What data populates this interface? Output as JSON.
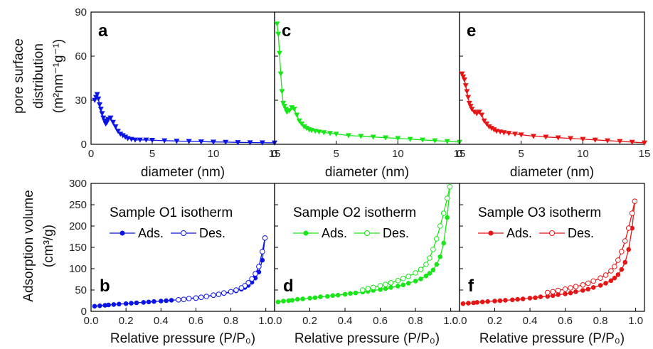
{
  "top_ylabel": [
    "pore surface",
    "distribution",
    "(m²nm⁻¹g⁻¹)"
  ],
  "bottom_ylabel": [
    "Adsorption volume",
    "(cm³/g)"
  ],
  "chart_data": [
    {
      "id": "a",
      "type": "line",
      "letter": "a",
      "color": "#0a14e6",
      "xlabel": "diameter (nm)",
      "xlim": [
        0,
        15
      ],
      "ylim": [
        0,
        90
      ],
      "xticks": [
        0,
        5,
        10,
        15
      ],
      "yticks": [
        0,
        30,
        60,
        90
      ],
      "series": [
        {
          "x": [
            0.3,
            0.4,
            0.5,
            0.6,
            0.7,
            0.8,
            0.9,
            1.0,
            1.1,
            1.2,
            1.3,
            1.4,
            1.6,
            1.8,
            2.0,
            2.2,
            2.4,
            2.6,
            2.8,
            3.0,
            3.3,
            3.6,
            4.0,
            4.5,
            5.0,
            6.0,
            7.0,
            8.0,
            9.0,
            10.0,
            11.0,
            12.0,
            13.0,
            14.0,
            15.0
          ],
          "y": [
            30,
            32,
            34,
            31,
            27,
            24,
            21,
            18,
            16,
            14,
            15,
            17,
            18,
            15,
            12,
            9,
            7,
            6,
            5,
            4,
            3.5,
            3,
            3,
            3,
            2.8,
            2.5,
            2.2,
            2,
            1.8,
            1.6,
            1.5,
            1.3,
            1.2,
            1.1,
            1.0
          ]
        }
      ]
    },
    {
      "id": "c",
      "type": "line",
      "letter": "c",
      "color": "#17e617",
      "xlabel": "diameter (nm)",
      "xlim": [
        0,
        15
      ],
      "ylim": [
        0,
        90
      ],
      "xticks": [
        0,
        5,
        10,
        15
      ],
      "yticks": [],
      "series": [
        {
          "x": [
            0.2,
            0.3,
            0.4,
            0.5,
            0.6,
            0.7,
            0.8,
            0.9,
            1.0,
            1.2,
            1.4,
            1.6,
            1.8,
            2.0,
            2.2,
            2.4,
            2.6,
            2.8,
            3.0,
            3.3,
            3.6,
            4.0,
            4.5,
            5.0,
            6.0,
            7.0,
            8.0,
            9.0,
            10.0,
            11.0,
            12.0,
            13.0,
            14.0,
            15.0
          ],
          "y": [
            82,
            75,
            62,
            48,
            36,
            28,
            26,
            24,
            22,
            23,
            25,
            24,
            20,
            16,
            14,
            12,
            11,
            10,
            9.5,
            9,
            8.5,
            8,
            7.5,
            7,
            6,
            5.5,
            5,
            4.5,
            4,
            3.5,
            3,
            2.5,
            2,
            1.5
          ]
        }
      ]
    },
    {
      "id": "e",
      "type": "line",
      "letter": "e",
      "color": "#e61414",
      "xlabel": "diameter (nm)",
      "xlim": [
        0,
        15
      ],
      "ylim": [
        0,
        90
      ],
      "xticks": [
        0,
        5,
        10,
        15
      ],
      "yticks": [],
      "series": [
        {
          "x": [
            0.2,
            0.3,
            0.4,
            0.5,
            0.6,
            0.7,
            0.8,
            0.9,
            1.0,
            1.2,
            1.4,
            1.6,
            1.8,
            2.0,
            2.2,
            2.4,
            2.6,
            2.8,
            3.0,
            3.3,
            3.6,
            4.0,
            4.5,
            5.0,
            6.0,
            7.0,
            8.0,
            9.0,
            10.0,
            11.0,
            12.0,
            13.0,
            14.0,
            15.0
          ],
          "y": [
            48,
            46,
            44,
            40,
            36,
            32,
            28,
            26,
            24,
            22,
            21,
            22,
            20,
            16,
            14,
            12,
            11,
            10,
            9,
            8.5,
            8,
            7.5,
            7,
            6.5,
            5.5,
            5,
            4.5,
            4,
            3.5,
            3,
            2.5,
            2,
            1.5,
            1.0
          ]
        }
      ]
    },
    {
      "id": "b",
      "type": "line",
      "letter": "b",
      "color": "#0a14e6",
      "xlabel": "Relative pressure (P/P₀)",
      "xlim": [
        0,
        1.05
      ],
      "ylim": [
        0,
        300
      ],
      "xticks": [
        0.0,
        0.2,
        0.4,
        0.6,
        0.8,
        1.0
      ],
      "yticks": [
        0,
        50,
        100,
        150,
        200,
        250,
        300
      ],
      "legend": {
        "title": "Sample O1 isotherm",
        "ads": "Ads.",
        "des": "Des."
      },
      "series": [
        {
          "name": "Ads.",
          "filled": true,
          "x": [
            0.02,
            0.05,
            0.08,
            0.1,
            0.13,
            0.16,
            0.2,
            0.23,
            0.26,
            0.3,
            0.33,
            0.36,
            0.4,
            0.43,
            0.46,
            0.5,
            0.53,
            0.56,
            0.6,
            0.63,
            0.66,
            0.7,
            0.73,
            0.76,
            0.8,
            0.83,
            0.86,
            0.88,
            0.9,
            0.92,
            0.94,
            0.96,
            0.98,
            0.995
          ],
          "y": [
            12,
            13,
            14,
            15,
            16,
            17,
            18,
            19,
            20,
            21,
            22,
            23,
            24,
            25,
            26,
            27,
            28,
            30,
            32,
            33,
            35,
            37,
            39,
            42,
            45,
            48,
            52,
            56,
            61,
            68,
            78,
            92,
            120,
            172
          ]
        },
        {
          "name": "Des.",
          "filled": false,
          "x": [
            0.995,
            0.98,
            0.96,
            0.94,
            0.92,
            0.9,
            0.88,
            0.86,
            0.83,
            0.8,
            0.76,
            0.73,
            0.7,
            0.66,
            0.63,
            0.6,
            0.56,
            0.53,
            0.5
          ],
          "y": [
            172,
            140,
            105,
            88,
            76,
            67,
            60,
            55,
            50,
            46,
            43,
            40,
            38,
            35,
            33,
            31,
            30,
            28,
            27
          ]
        }
      ]
    },
    {
      "id": "d",
      "type": "line",
      "letter": "d",
      "color": "#17e617",
      "xlabel": "Relative pressure (P/P₀)",
      "xlim": [
        0,
        1.05
      ],
      "ylim": [
        0,
        300
      ],
      "xticks": [
        0.0,
        0.2,
        0.4,
        0.6,
        0.8,
        1.0
      ],
      "yticks": [],
      "legend": {
        "title": "Sample O2 isotherm",
        "ads": "Ads.",
        "des": "Des."
      },
      "series": [
        {
          "name": "Ads.",
          "filled": true,
          "x": [
            0.02,
            0.05,
            0.08,
            0.1,
            0.13,
            0.16,
            0.2,
            0.23,
            0.26,
            0.3,
            0.33,
            0.36,
            0.4,
            0.43,
            0.46,
            0.5,
            0.53,
            0.56,
            0.6,
            0.63,
            0.66,
            0.7,
            0.73,
            0.76,
            0.8,
            0.83,
            0.86,
            0.88,
            0.9,
            0.92,
            0.94,
            0.96,
            0.98,
            0.995
          ],
          "y": [
            22,
            24,
            25,
            26,
            28,
            29,
            31,
            32,
            34,
            35,
            37,
            38,
            40,
            42,
            43,
            45,
            47,
            49,
            51,
            53,
            56,
            59,
            62,
            66,
            71,
            76,
            83,
            89,
            97,
            110,
            128,
            160,
            220,
            292
          ]
        },
        {
          "name": "Des.",
          "filled": false,
          "x": [
            0.995,
            0.98,
            0.96,
            0.94,
            0.92,
            0.9,
            0.88,
            0.86,
            0.83,
            0.8,
            0.76,
            0.73,
            0.7,
            0.66,
            0.63,
            0.6,
            0.56,
            0.53,
            0.5
          ],
          "y": [
            292,
            265,
            230,
            200,
            170,
            145,
            125,
            110,
            98,
            90,
            82,
            77,
            72,
            67,
            63,
            60,
            56,
            53,
            50
          ]
        }
      ]
    },
    {
      "id": "f",
      "type": "line",
      "letter": "f",
      "color": "#e61414",
      "xlabel": "Relative pressure (P/P₀)",
      "xlim": [
        0,
        1.05
      ],
      "ylim": [
        0,
        300
      ],
      "xticks": [
        0.0,
        0.2,
        0.4,
        0.6,
        0.8,
        1.0
      ],
      "yticks": [],
      "legend": {
        "title": "Sample O3 isotherm",
        "ads": "Ads.",
        "des": "Des."
      },
      "series": [
        {
          "name": "Ads.",
          "filled": true,
          "x": [
            0.02,
            0.05,
            0.08,
            0.1,
            0.13,
            0.16,
            0.2,
            0.23,
            0.26,
            0.3,
            0.33,
            0.36,
            0.4,
            0.43,
            0.46,
            0.5,
            0.53,
            0.56,
            0.6,
            0.63,
            0.66,
            0.7,
            0.73,
            0.76,
            0.8,
            0.83,
            0.86,
            0.88,
            0.9,
            0.92,
            0.94,
            0.96,
            0.98,
            0.995
          ],
          "y": [
            18,
            19,
            20,
            21,
            22,
            23,
            24,
            25,
            26,
            27,
            28,
            29,
            31,
            32,
            34,
            35,
            37,
            39,
            41,
            43,
            46,
            49,
            52,
            56,
            61,
            66,
            72,
            78,
            86,
            98,
            115,
            145,
            195,
            258
          ]
        },
        {
          "name": "Des.",
          "filled": false,
          "x": [
            0.995,
            0.98,
            0.96,
            0.94,
            0.92,
            0.9,
            0.88,
            0.86,
            0.83,
            0.8,
            0.76,
            0.73,
            0.7,
            0.66,
            0.63,
            0.6,
            0.56,
            0.53,
            0.5
          ],
          "y": [
            258,
            230,
            195,
            165,
            140,
            120,
            105,
            95,
            85,
            78,
            71,
            66,
            62,
            58,
            55,
            52,
            49,
            46,
            44
          ]
        }
      ]
    }
  ]
}
